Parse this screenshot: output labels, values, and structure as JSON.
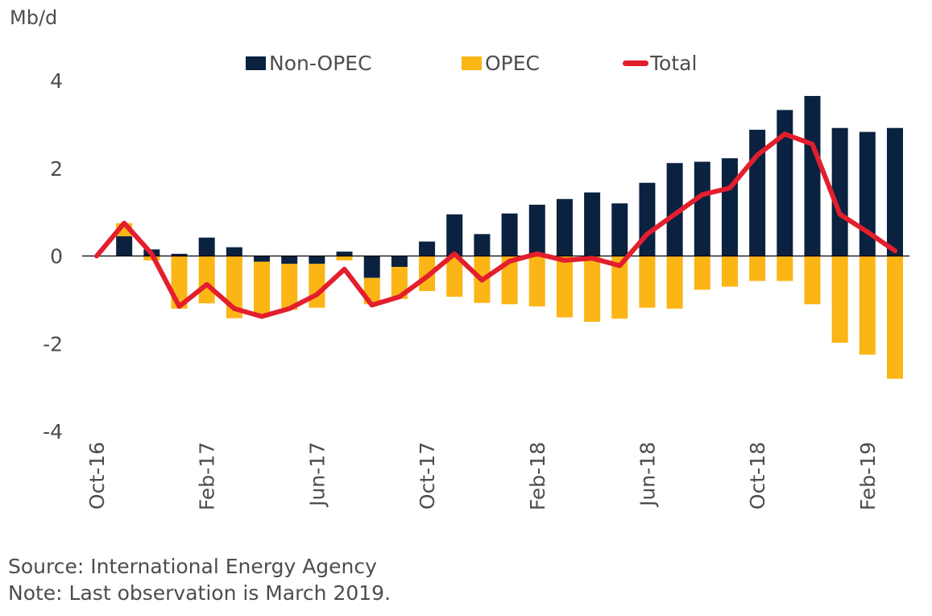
{
  "chart_data": {
    "type": "bar",
    "stacked": true,
    "y_unit_label": "Mb/d",
    "ylim": [
      -4,
      4
    ],
    "y_ticks": [
      4,
      2,
      0,
      -2,
      -4
    ],
    "y_tick_labels": [
      "4",
      "2",
      "0",
      "-2",
      "-4"
    ],
    "categories": [
      "Oct-16",
      "Nov-16",
      "Dec-16",
      "Jan-17",
      "Feb-17",
      "Mar-17",
      "Apr-17",
      "May-17",
      "Jun-17",
      "Jul-17",
      "Aug-17",
      "Sep-17",
      "Oct-17",
      "Nov-17",
      "Dec-17",
      "Jan-18",
      "Feb-18",
      "Mar-18",
      "Apr-18",
      "May-18",
      "Jun-18",
      "Jul-18",
      "Aug-18",
      "Sep-18",
      "Oct-18",
      "Nov-18",
      "Dec-18",
      "Jan-19",
      "Feb-19",
      "Mar-19"
    ],
    "x_tick_labels": [
      {
        "index": 0,
        "label": "Oct-16"
      },
      {
        "index": 4,
        "label": "Feb-17"
      },
      {
        "index": 8,
        "label": "Jun-17"
      },
      {
        "index": 12,
        "label": "Oct-17"
      },
      {
        "index": 16,
        "label": "Feb-18"
      },
      {
        "index": 20,
        "label": "Jun-18"
      },
      {
        "index": 24,
        "label": "Oct-18"
      },
      {
        "index": 28,
        "label": "Feb-19"
      }
    ],
    "series": [
      {
        "name": "Non-OPEC",
        "type": "bar",
        "color": "#0a2240",
        "values": [
          0,
          0.45,
          0.15,
          0.05,
          0.42,
          0.2,
          -0.13,
          -0.18,
          -0.18,
          0.1,
          -0.5,
          -0.25,
          0.33,
          0.95,
          0.5,
          0.97,
          1.17,
          1.3,
          1.45,
          1.2,
          1.67,
          2.12,
          2.15,
          2.23,
          2.88,
          3.33,
          3.65,
          2.92,
          2.83,
          2.92
        ]
      },
      {
        "name": "OPEC",
        "type": "bar",
        "color": "#fbb515",
        "values": [
          0,
          0.3,
          -0.1,
          -1.2,
          -1.08,
          -1.42,
          -1.25,
          -1.05,
          -1.0,
          -0.1,
          -0.6,
          -0.73,
          -0.8,
          -0.93,
          -1.07,
          -1.1,
          -1.15,
          -1.4,
          -1.5,
          -1.43,
          -1.18,
          -1.2,
          -0.77,
          -0.7,
          -0.57,
          -0.57,
          -1.1,
          -1.98,
          -2.25,
          -2.8
        ]
      },
      {
        "name": "Total",
        "type": "line",
        "color": "#e31e2d",
        "values": [
          0,
          0.75,
          0.05,
          -1.15,
          -0.65,
          -1.2,
          -1.38,
          -1.2,
          -0.88,
          -0.3,
          -1.12,
          -0.93,
          -0.47,
          0.05,
          -0.55,
          -0.12,
          0.05,
          -0.1,
          -0.05,
          -0.22,
          0.5,
          0.95,
          1.4,
          1.55,
          2.3,
          2.78,
          2.55,
          0.95,
          0.55,
          0.12
        ]
      }
    ],
    "legend": [
      "Non-OPEC",
      "OPEC",
      "Total"
    ],
    "legend_position": "top-center",
    "grid": false
  },
  "notes": {
    "source": "Source: International Energy Agency",
    "note": "Note: Last observation is March 2019."
  }
}
